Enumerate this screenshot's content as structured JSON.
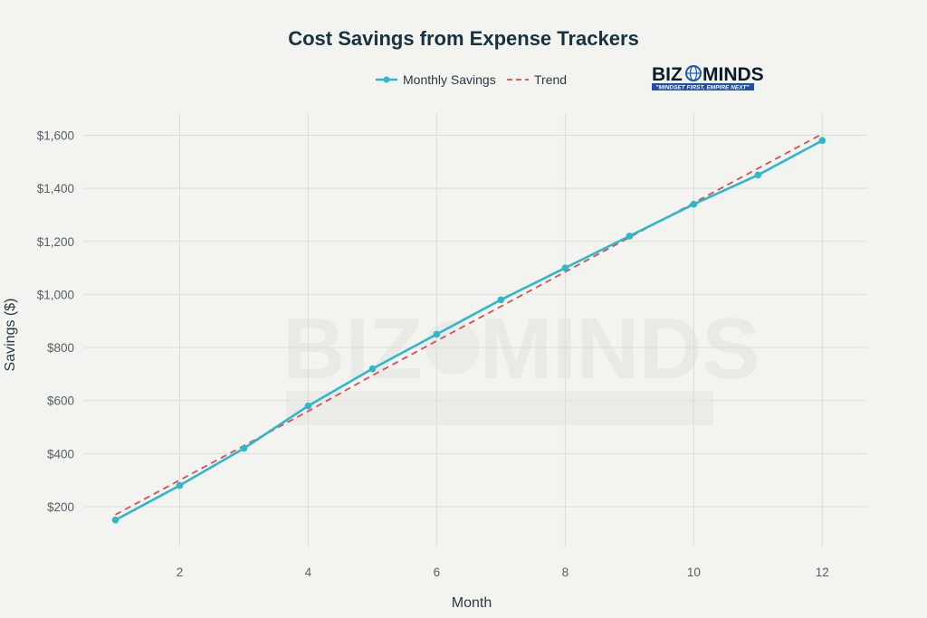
{
  "colors": {
    "background": "#f3f3ef",
    "series": "#2fb8cc",
    "trend": "#d94f4f",
    "grid": "#dcdcd8"
  },
  "logo": {
    "text_left": "BIZ",
    "text_right": "MINDS",
    "tagline": "\"MINDSET FIRST, EMPIRE NEXT\"",
    "watermark_left": "BIZ",
    "watermark_right": "MINDS"
  },
  "chart_data": {
    "type": "line",
    "title": "Cost Savings from Expense Trackers",
    "xlabel": "Month",
    "ylabel": "Savings ($)",
    "xlim": [
      0.5,
      12.7
    ],
    "ylim": [
      50,
      1680
    ],
    "x_ticks": [
      2,
      4,
      6,
      8,
      10,
      12
    ],
    "y_ticks": [
      200,
      400,
      600,
      800,
      1000,
      1200,
      1400,
      1600
    ],
    "y_tick_labels": [
      "$200",
      "$400",
      "$600",
      "$800",
      "$1,000",
      "$1,200",
      "$1,400",
      "$1,600"
    ],
    "grid": true,
    "legend_position": "top-center",
    "x": [
      1,
      2,
      3,
      4,
      5,
      6,
      7,
      8,
      9,
      10,
      11,
      12
    ],
    "series": [
      {
        "name": "Monthly Savings",
        "style": "solid-markers",
        "values": [
          150,
          280,
          420,
          580,
          720,
          850,
          980,
          1100,
          1220,
          1340,
          1450,
          1580
        ]
      },
      {
        "name": "Trend",
        "style": "dashed",
        "values": [
          170,
          300,
          430,
          560,
          695,
          825,
          955,
          1085,
          1215,
          1345,
          1475,
          1605
        ]
      }
    ]
  }
}
